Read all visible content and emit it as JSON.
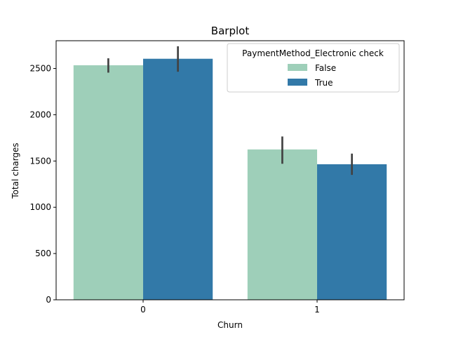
{
  "chart_data": {
    "type": "bar",
    "title": "Barplot",
    "xlabel": "Churn",
    "ylabel": "Total charges",
    "categories": [
      "0",
      "1"
    ],
    "ylim": [
      0,
      2800
    ],
    "yticks": [
      0,
      500,
      1000,
      1500,
      2000,
      2500
    ],
    "grid": false,
    "legend": {
      "title": "PaymentMethod_Electronic check",
      "position": "top-right"
    },
    "series": [
      {
        "name": "False",
        "color": "#9ecfb9",
        "values": [
          2535,
          1625
        ],
        "error_low": [
          2455,
          1470
        ],
        "error_high": [
          2610,
          1765
        ]
      },
      {
        "name": "True",
        "color": "#3279a8",
        "values": [
          2605,
          1465
        ],
        "error_low": [
          2465,
          1350
        ],
        "error_high": [
          2740,
          1580
        ]
      }
    ]
  }
}
